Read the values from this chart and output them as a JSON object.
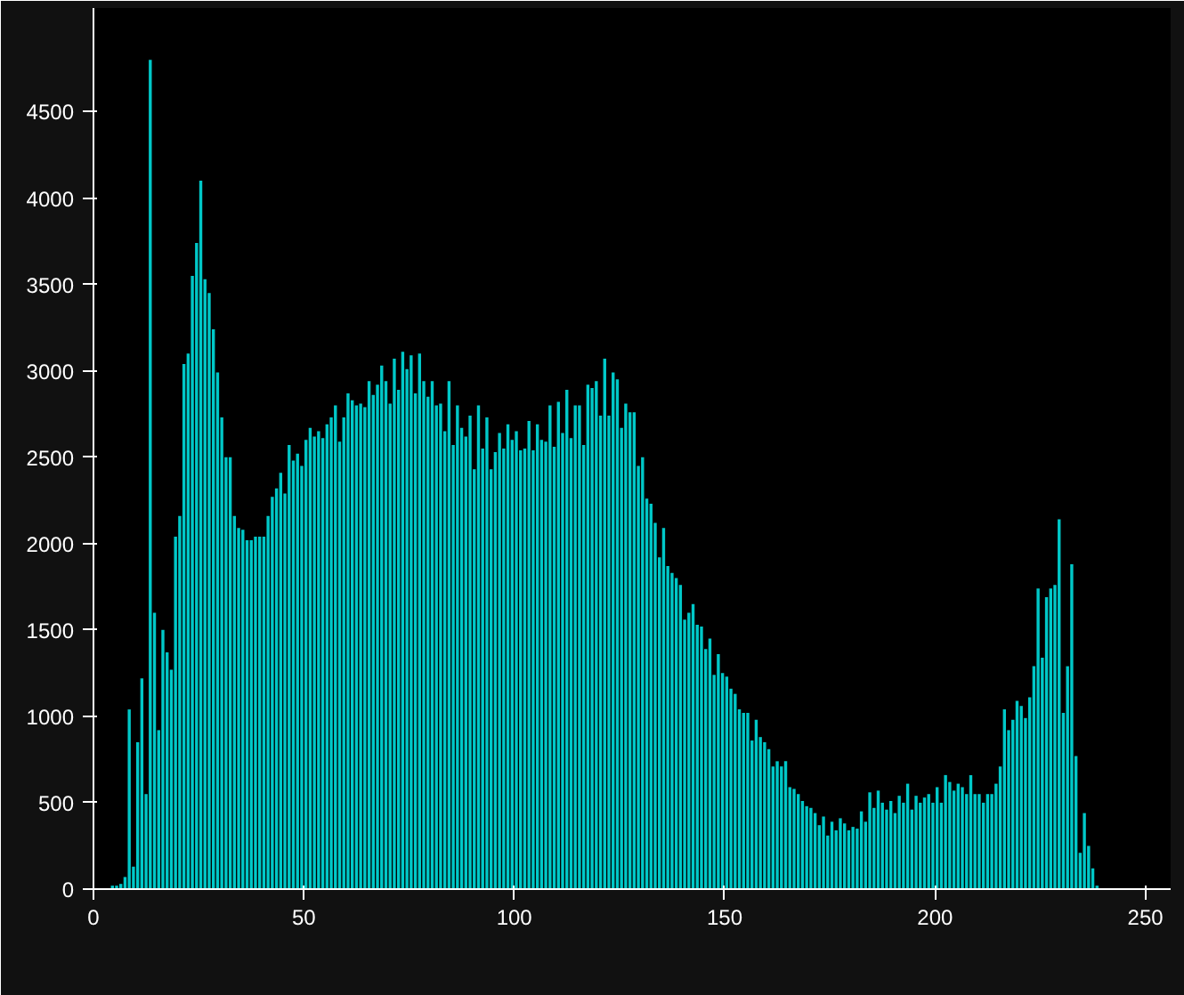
{
  "chart_data": {
    "type": "histogram",
    "bins": [
      0,
      1,
      2,
      3,
      4,
      5,
      6,
      7,
      8,
      9,
      10,
      11,
      12,
      13,
      14,
      15,
      16,
      17,
      18,
      19,
      20,
      21,
      22,
      23,
      24,
      25,
      26,
      27,
      28,
      29,
      30,
      31,
      32,
      33,
      34,
      35,
      36,
      37,
      38,
      39,
      40,
      41,
      42,
      43,
      44,
      45,
      46,
      47,
      48,
      49,
      50,
      51,
      52,
      53,
      54,
      55,
      56,
      57,
      58,
      59,
      60,
      61,
      62,
      63,
      64,
      65,
      66,
      67,
      68,
      69,
      70,
      71,
      72,
      73,
      74,
      75,
      76,
      77,
      78,
      79,
      80,
      81,
      82,
      83,
      84,
      85,
      86,
      87,
      88,
      89,
      90,
      91,
      92,
      93,
      94,
      95,
      96,
      97,
      98,
      99,
      100,
      101,
      102,
      103,
      104,
      105,
      106,
      107,
      108,
      109,
      110,
      111,
      112,
      113,
      114,
      115,
      116,
      117,
      118,
      119,
      120,
      121,
      122,
      123,
      124,
      125,
      126,
      127,
      128,
      129,
      130,
      131,
      132,
      133,
      134,
      135,
      136,
      137,
      138,
      139,
      140,
      141,
      142,
      143,
      144,
      145,
      146,
      147,
      148,
      149,
      150,
      151,
      152,
      153,
      154,
      155,
      156,
      157,
      158,
      159,
      160,
      161,
      162,
      163,
      164,
      165,
      166,
      167,
      168,
      169,
      170,
      171,
      172,
      173,
      174,
      175,
      176,
      177,
      178,
      179,
      180,
      181,
      182,
      183,
      184,
      185,
      186,
      187,
      188,
      189,
      190,
      191,
      192,
      193,
      194,
      195,
      196,
      197,
      198,
      199,
      200,
      201,
      202,
      203,
      204,
      205,
      206,
      207,
      208,
      209,
      210,
      211,
      212,
      213,
      214,
      215,
      216,
      217,
      218,
      219,
      220,
      221,
      222,
      223,
      224,
      225,
      226,
      227,
      228,
      229,
      230,
      231,
      232,
      233,
      234,
      235,
      236,
      237,
      238,
      239,
      240,
      241,
      242,
      243,
      244,
      245,
      246,
      247,
      248,
      249,
      250,
      251,
      252,
      253,
      254,
      255,
      256
    ],
    "values": [
      null,
      null,
      null,
      null,
      20,
      20,
      30,
      70,
      1040,
      130,
      850,
      1220,
      550,
      4800,
      1600,
      920,
      1500,
      1370,
      1270,
      2040,
      2160,
      3040,
      3100,
      3550,
      3740,
      4100,
      3530,
      3450,
      3240,
      2990,
      2730,
      2500,
      2500,
      2160,
      2090,
      2080,
      2020,
      2020,
      2040,
      2040,
      2040,
      2160,
      2270,
      2320,
      2410,
      2290,
      2570,
      2480,
      2520,
      2450,
      2600,
      2670,
      2620,
      2650,
      2610,
      2690,
      2730,
      2800,
      2590,
      2730,
      2870,
      2830,
      2800,
      2810,
      2790,
      2940,
      2860,
      2920,
      3030,
      2940,
      2810,
      3070,
      2890,
      3110,
      3010,
      3090,
      2870,
      3100,
      2940,
      2850,
      2940,
      2800,
      2810,
      2650,
      2940,
      2570,
      2800,
      2670,
      2620,
      2740,
      2430,
      2800,
      2550,
      2730,
      2430,
      2530,
      2640,
      2550,
      2690,
      2600,
      2650,
      2540,
      2550,
      2710,
      2540,
      2690,
      2600,
      2590,
      2800,
      2560,
      2820,
      2640,
      2890,
      2610,
      2800,
      2800,
      2570,
      2920,
      2900,
      2940,
      2740,
      3070,
      2740,
      2990,
      2950,
      2670,
      2810,
      2760,
      2760,
      2450,
      2500,
      2260,
      2230,
      2120,
      1920,
      2090,
      1870,
      1830,
      1800,
      1760,
      1560,
      1600,
      1650,
      1530,
      1520,
      1390,
      1450,
      1240,
      1360,
      1250,
      1230,
      1160,
      1130,
      1040,
      1020,
      1020,
      860,
      980,
      880,
      850,
      810,
      710,
      740,
      710,
      740,
      590,
      580,
      550,
      510,
      480,
      470,
      440,
      370,
      420,
      310,
      390,
      340,
      410,
      380,
      340,
      360,
      350,
      450,
      390,
      560,
      470,
      570,
      500,
      460,
      510,
      440,
      540,
      500,
      610,
      460,
      540,
      500,
      530,
      550,
      500,
      590,
      500,
      660,
      620,
      570,
      610,
      590,
      550,
      660,
      550,
      550,
      500,
      550,
      550,
      610,
      710,
      1040,
      920,
      980,
      1090,
      1060,
      990,
      1110,
      1290,
      1740,
      1340,
      1690,
      1740,
      1760,
      2140,
      1020,
      1290,
      1880,
      770,
      210,
      440,
      250,
      120,
      20,
      0,
      0,
      0,
      0,
      0,
      0,
      0,
      0,
      0,
      0,
      0,
      0,
      0,
      0,
      0,
      0,
      0
    ],
    "color": "#00c8c8",
    "xlim": [
      0,
      256
    ],
    "xticks": [
      0,
      50,
      100,
      150,
      200,
      250
    ],
    "ylim": [
      0,
      5100
    ],
    "yticks": [
      0,
      500,
      1000,
      1500,
      2000,
      2500,
      3000,
      3500,
      4000,
      4500
    ],
    "grid": false
  }
}
